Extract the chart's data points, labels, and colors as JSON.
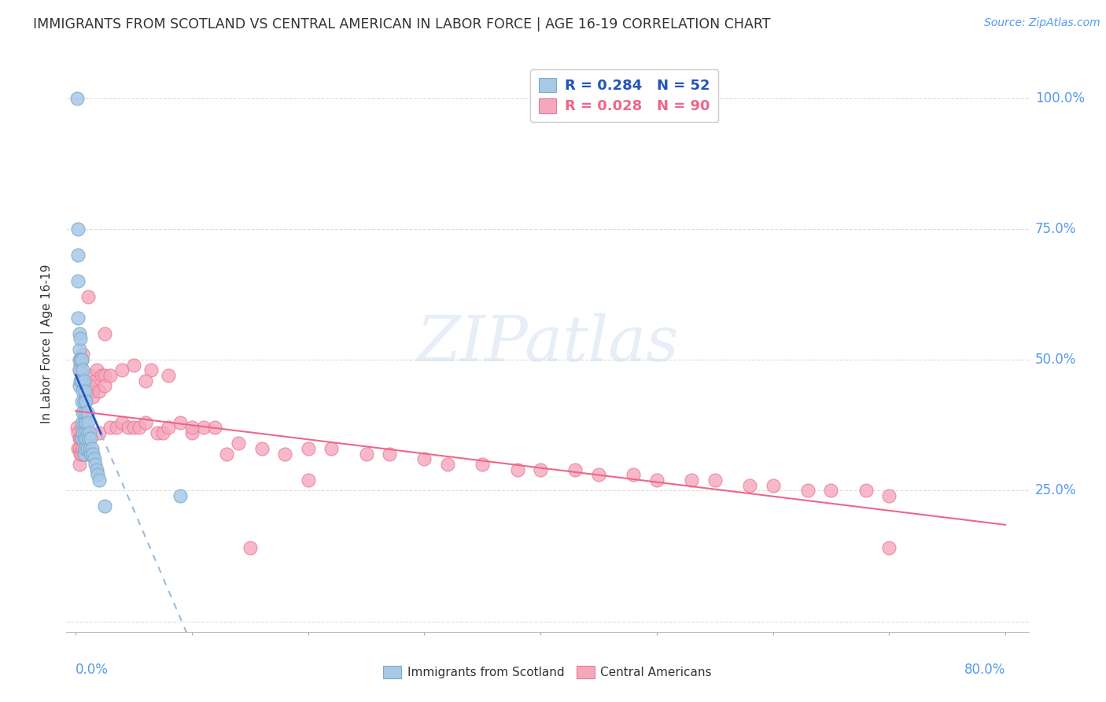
{
  "title": "IMMIGRANTS FROM SCOTLAND VS CENTRAL AMERICAN IN LABOR FORCE | AGE 16-19 CORRELATION CHART",
  "source": "Source: ZipAtlas.com",
  "ylabel": "In Labor Force | Age 16-19",
  "legend_R1": "R = 0.284",
  "legend_N1": "N = 52",
  "legend_R2": "R = 0.028",
  "legend_N2": "N = 90",
  "scotland_color": "#a8c8e8",
  "scotland_edge": "#7aaac8",
  "central_color": "#f5a8bc",
  "central_edge": "#e87898",
  "trend_scotland_solid": "#2255bb",
  "trend_scotland_dash": "#99bbdd",
  "trend_central_color": "#ee6688",
  "watermark": "ZIPatlas",
  "background_color": "#ffffff",
  "grid_color": "#dddddd",
  "axis_label_color": "#5599ee",
  "text_color": "#333333",
  "scotland_x": [
    0.001,
    0.002,
    0.002,
    0.002,
    0.002,
    0.003,
    0.003,
    0.003,
    0.003,
    0.003,
    0.004,
    0.004,
    0.004,
    0.005,
    0.005,
    0.005,
    0.005,
    0.005,
    0.006,
    0.006,
    0.006,
    0.006,
    0.007,
    0.007,
    0.007,
    0.007,
    0.007,
    0.008,
    0.008,
    0.008,
    0.008,
    0.009,
    0.009,
    0.009,
    0.01,
    0.01,
    0.01,
    0.011,
    0.011,
    0.012,
    0.012,
    0.013,
    0.013,
    0.014,
    0.015,
    0.016,
    0.017,
    0.018,
    0.019,
    0.02,
    0.025,
    0.09
  ],
  "scotland_y": [
    1.0,
    0.75,
    0.7,
    0.65,
    0.58,
    0.55,
    0.52,
    0.5,
    0.48,
    0.45,
    0.54,
    0.5,
    0.46,
    0.5,
    0.46,
    0.42,
    0.38,
    0.35,
    0.48,
    0.44,
    0.4,
    0.36,
    0.46,
    0.42,
    0.38,
    0.35,
    0.32,
    0.44,
    0.4,
    0.36,
    0.33,
    0.42,
    0.38,
    0.35,
    0.4,
    0.36,
    0.33,
    0.38,
    0.35,
    0.36,
    0.33,
    0.35,
    0.32,
    0.33,
    0.32,
    0.31,
    0.3,
    0.29,
    0.28,
    0.27,
    0.22,
    0.24
  ],
  "central_x": [
    0.001,
    0.002,
    0.002,
    0.003,
    0.003,
    0.003,
    0.004,
    0.004,
    0.005,
    0.005,
    0.005,
    0.006,
    0.006,
    0.007,
    0.007,
    0.008,
    0.008,
    0.009,
    0.009,
    0.01,
    0.01,
    0.011,
    0.012,
    0.013,
    0.015,
    0.017,
    0.018,
    0.02,
    0.022,
    0.025,
    0.03,
    0.035,
    0.04,
    0.045,
    0.05,
    0.055,
    0.06,
    0.065,
    0.07,
    0.075,
    0.08,
    0.09,
    0.1,
    0.11,
    0.12,
    0.13,
    0.14,
    0.16,
    0.18,
    0.2,
    0.22,
    0.25,
    0.27,
    0.3,
    0.32,
    0.35,
    0.38,
    0.4,
    0.43,
    0.45,
    0.48,
    0.5,
    0.53,
    0.55,
    0.58,
    0.6,
    0.63,
    0.65,
    0.68,
    0.7,
    0.003,
    0.004,
    0.005,
    0.006,
    0.008,
    0.01,
    0.012,
    0.015,
    0.02,
    0.025,
    0.03,
    0.04,
    0.05,
    0.06,
    0.08,
    0.1,
    0.15,
    0.2,
    0.7,
    0.025
  ],
  "central_y": [
    0.37,
    0.36,
    0.33,
    0.35,
    0.33,
    0.3,
    0.35,
    0.32,
    0.37,
    0.35,
    0.32,
    0.36,
    0.33,
    0.35,
    0.32,
    0.36,
    0.33,
    0.35,
    0.32,
    0.36,
    0.33,
    0.62,
    0.35,
    0.47,
    0.44,
    0.46,
    0.48,
    0.36,
    0.47,
    0.47,
    0.37,
    0.37,
    0.38,
    0.37,
    0.37,
    0.37,
    0.38,
    0.48,
    0.36,
    0.36,
    0.37,
    0.38,
    0.36,
    0.37,
    0.37,
    0.32,
    0.34,
    0.33,
    0.32,
    0.33,
    0.33,
    0.32,
    0.32,
    0.31,
    0.3,
    0.3,
    0.29,
    0.29,
    0.29,
    0.28,
    0.28,
    0.27,
    0.27,
    0.27,
    0.26,
    0.26,
    0.25,
    0.25,
    0.25,
    0.24,
    0.48,
    0.49,
    0.5,
    0.51,
    0.43,
    0.44,
    0.45,
    0.43,
    0.44,
    0.45,
    0.47,
    0.48,
    0.49,
    0.46,
    0.47,
    0.37,
    0.14,
    0.27,
    0.14,
    0.55
  ],
  "xmin": 0.0,
  "xmax": 0.8,
  "ymin": 0.0,
  "ymax": 1.0,
  "yticks": [
    0.0,
    0.25,
    0.5,
    0.75,
    1.0
  ],
  "ytick_labels": [
    "",
    "25.0%",
    "50.0%",
    "75.0%",
    "100.0%"
  ],
  "xtick_labels_bottom": [
    "0.0%",
    "80.0%"
  ]
}
